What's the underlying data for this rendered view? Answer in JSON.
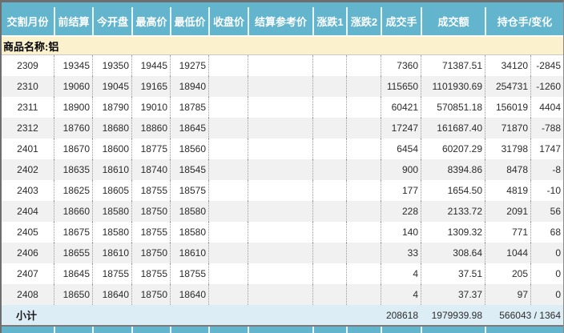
{
  "table": {
    "header": {
      "columns": [
        "交割月份",
        "前结算",
        "今开盘",
        "最高价",
        "最低价",
        "收盘价",
        "结算参考价",
        "涨跌1",
        "涨跌2",
        "成交手",
        "成交额",
        "持仓手/变化"
      ]
    },
    "product_label": "商品名称:铝",
    "rows": [
      [
        "2309",
        "19345",
        "19350",
        "19445",
        "19275",
        "",
        "",
        "",
        "",
        "7360",
        "71387.51",
        "34120",
        "-2845"
      ],
      [
        "2310",
        "19060",
        "19045",
        "19165",
        "18940",
        "",
        "",
        "",
        "",
        "115650",
        "1101930.69",
        "254731",
        "-1260"
      ],
      [
        "2311",
        "18900",
        "18790",
        "19010",
        "18785",
        "",
        "",
        "",
        "",
        "60421",
        "570851.18",
        "156019",
        "4404"
      ],
      [
        "2312",
        "18760",
        "18680",
        "18860",
        "18645",
        "",
        "",
        "",
        "",
        "17247",
        "161687.40",
        "71870",
        "-788"
      ],
      [
        "2401",
        "18670",
        "18600",
        "18775",
        "18560",
        "",
        "",
        "",
        "",
        "6454",
        "60207.29",
        "31798",
        "1747"
      ],
      [
        "2402",
        "18635",
        "18610",
        "18740",
        "18545",
        "",
        "",
        "",
        "",
        "900",
        "8394.86",
        "8478",
        "-8"
      ],
      [
        "2403",
        "18625",
        "18605",
        "18755",
        "18575",
        "",
        "",
        "",
        "",
        "177",
        "1654.50",
        "4819",
        "-10"
      ],
      [
        "2404",
        "18660",
        "18580",
        "18750",
        "18580",
        "",
        "",
        "",
        "",
        "228",
        "2133.72",
        "2091",
        "56"
      ],
      [
        "2405",
        "18675",
        "18580",
        "18755",
        "18580",
        "",
        "",
        "",
        "",
        "140",
        "1309.32",
        "771",
        "68"
      ],
      [
        "2406",
        "18655",
        "18610",
        "18750",
        "18610",
        "",
        "",
        "",
        "",
        "33",
        "308.64",
        "1044",
        "0"
      ],
      [
        "2407",
        "18645",
        "18755",
        "18755",
        "18755",
        "",
        "",
        "",
        "",
        "4",
        "37.51",
        "205",
        "0"
      ],
      [
        "2408",
        "18650",
        "18640",
        "18750",
        "18640",
        "",
        "",
        "",
        "",
        "4",
        "37.37",
        "97",
        "0"
      ]
    ],
    "subtotal": {
      "label": "小计",
      "volume": "208618",
      "turnover": "1979939.98",
      "open_interest_change": "566043 / 1364"
    },
    "colors": {
      "header_bg": "#63b5ce",
      "product_band_bg": "#fbf2cd",
      "row_alt_bg": "#f1f1f1",
      "subtotal_bg": "#dcedf6",
      "border_dark": "#6e6e6e",
      "header_text": "#ffffff",
      "body_text": "#2b2b2b"
    }
  }
}
